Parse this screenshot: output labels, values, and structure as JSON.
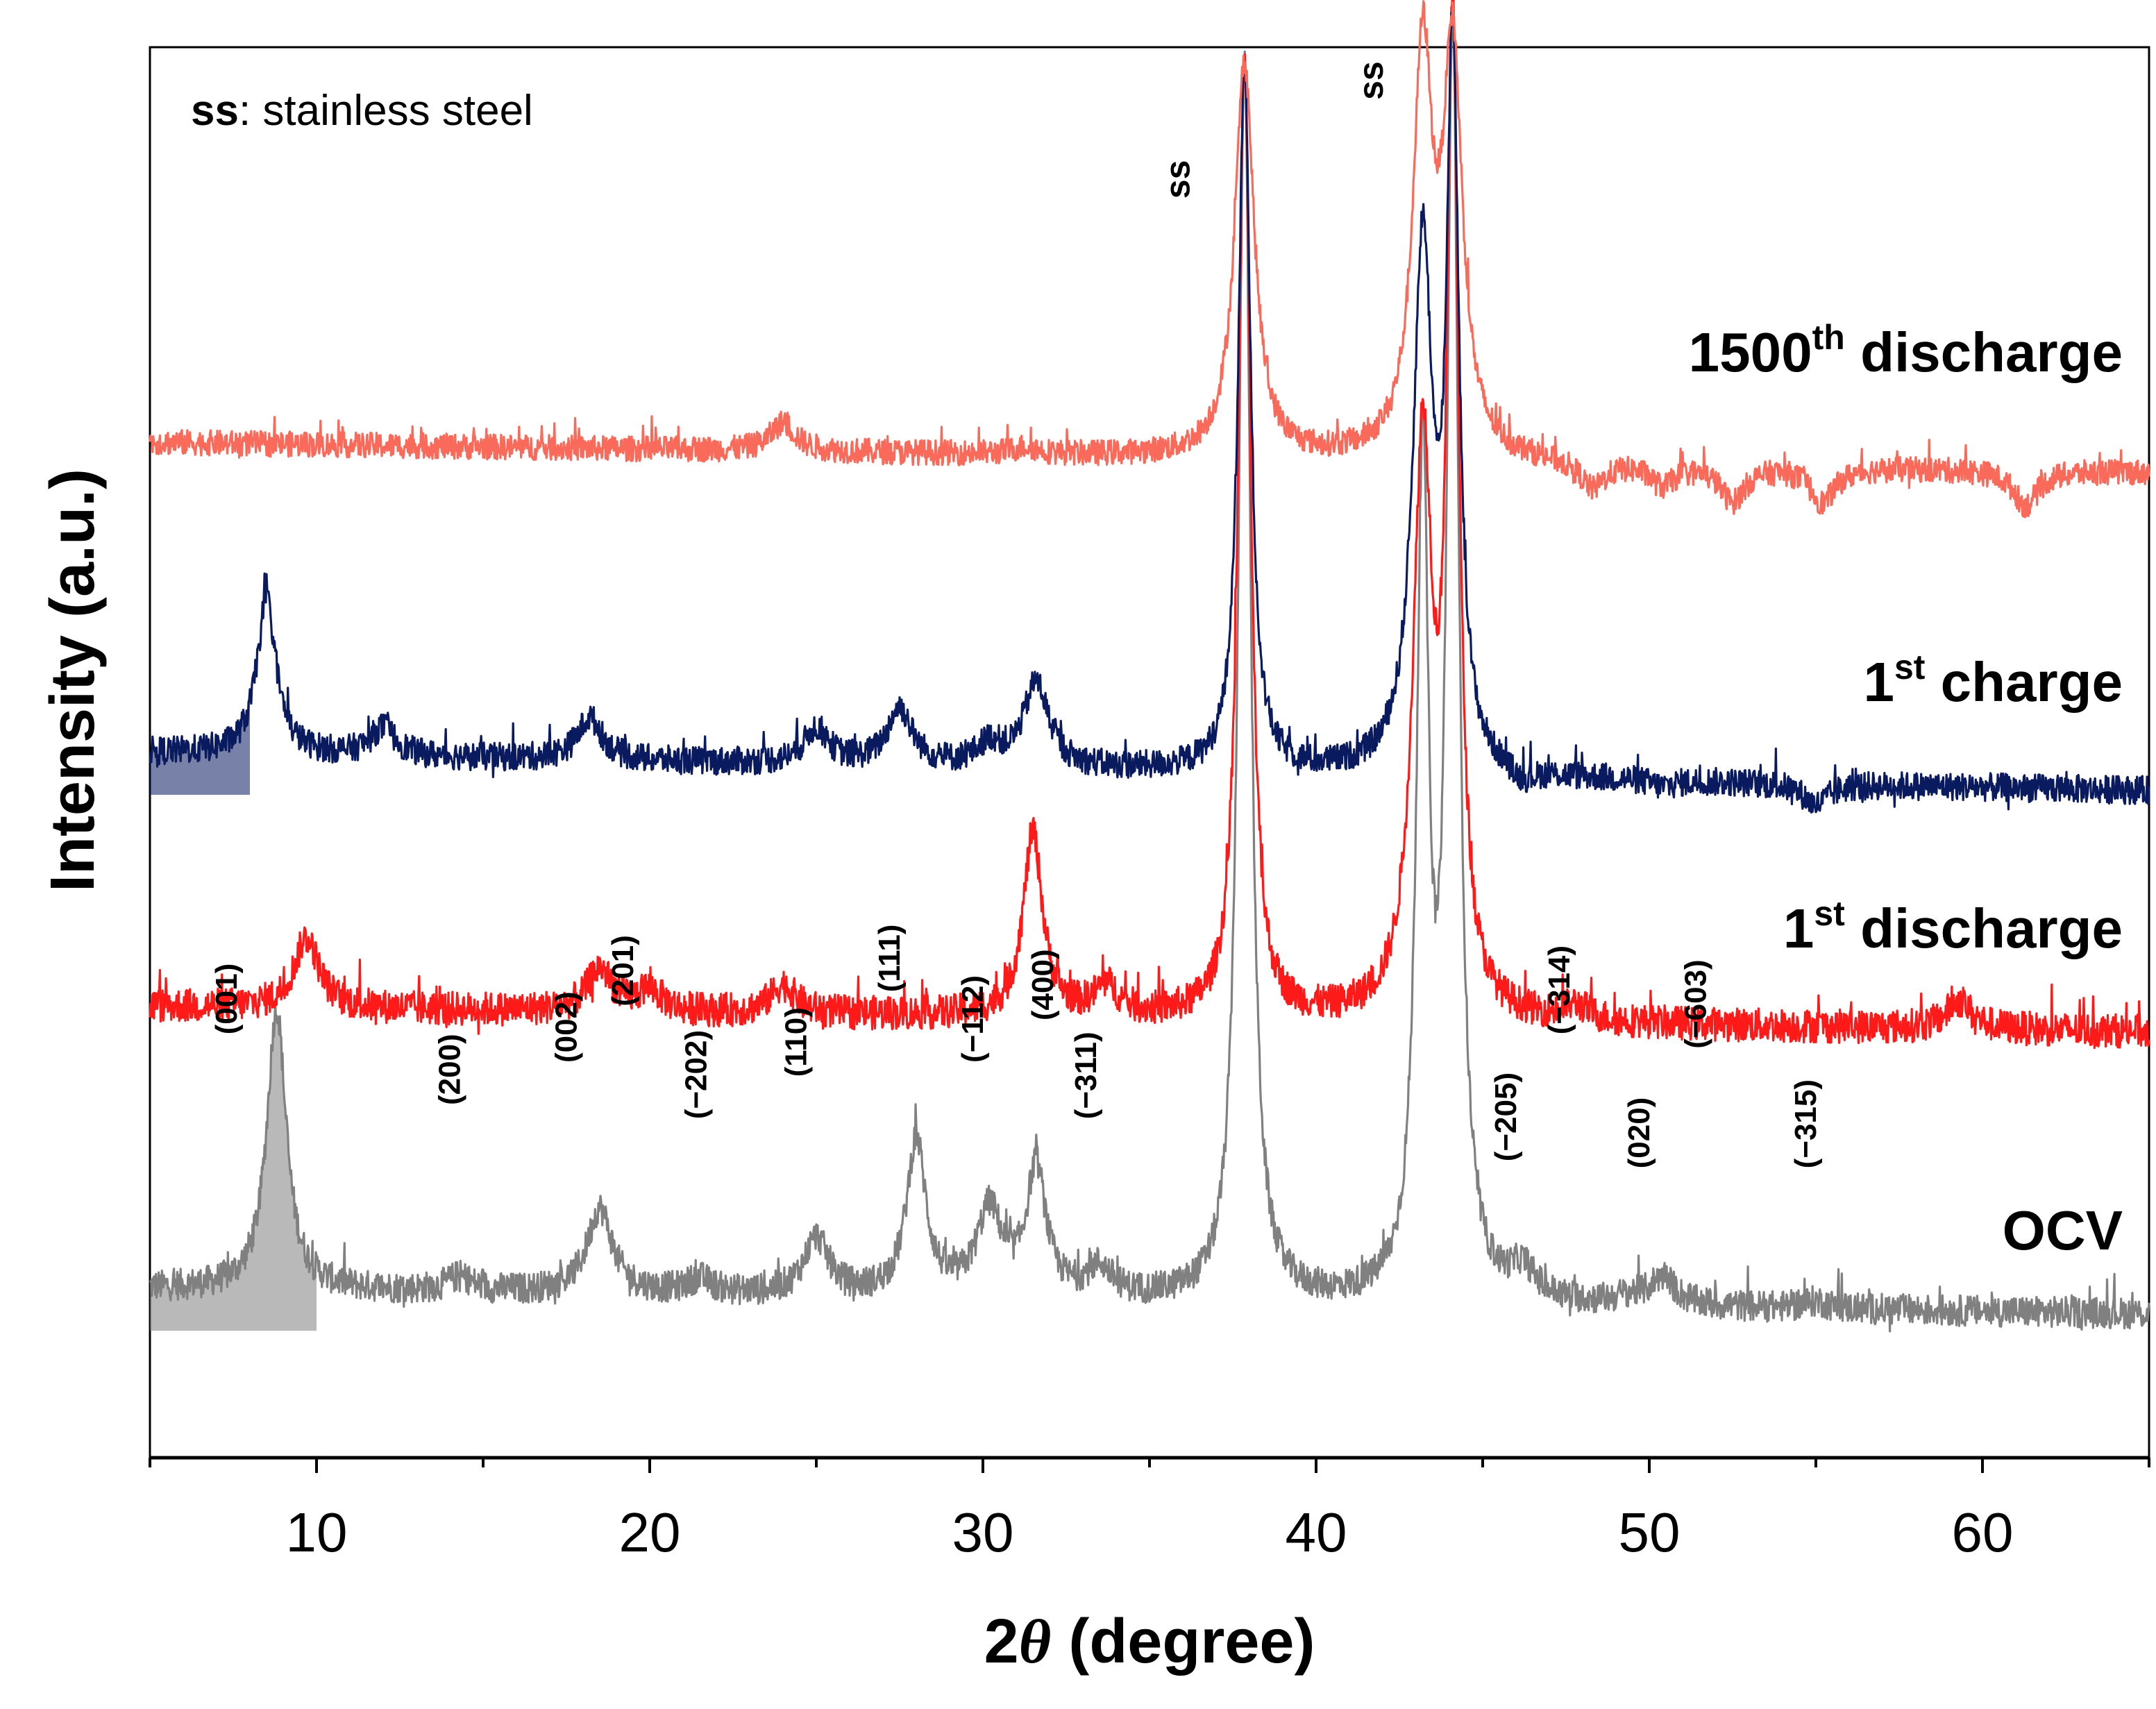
{
  "chart_data": {
    "type": "line",
    "title": "",
    "xlabel_prefix": "2",
    "xlabel_theta": "θ",
    "xlabel_suffix": " (degree)",
    "ylabel": "Intensity (a.u.)",
    "xlim": [
      5,
      65
    ],
    "ylim": [
      0,
      100
    ],
    "xticks": [
      10,
      20,
      30,
      40,
      50,
      60
    ],
    "grid": false,
    "legend": "none",
    "annotation": {
      "bold": "ss",
      "text": ": stainless steel"
    },
    "ss_markers": [
      {
        "label": "ss",
        "x": 36.2,
        "y": 92
      },
      {
        "label": "ss",
        "x": 42.0,
        "y": 99
      }
    ],
    "series": [
      {
        "name": "OCV",
        "label_main": "OCV",
        "label_sup": "",
        "label_tail": "",
        "color": "#808080",
        "baseline": 12,
        "noise": 1.1,
        "slope": -0.03,
        "fill_below_x": 10,
        "x": [
          5,
          8.8,
          14.3,
          18.5,
          21.5,
          25.0,
          28.0,
          30.2,
          31.6,
          33.5,
          37.85,
          43.2,
          44.1,
          46.2,
          49.4,
          50.4,
          55.0,
          62.0
        ],
        "y": [
          12,
          32,
          13,
          18,
          13,
          16,
          23,
          18,
          21,
          14,
          100,
          70,
          100,
          14,
          12.5,
          14,
          12.5,
          12
        ],
        "peak_labels": [
          {
            "label": "(001)",
            "x": 7.6,
            "y": 30
          },
          {
            "label": "(200)",
            "x": 14.3,
            "y": 25
          },
          {
            "label": "(002)",
            "x": 17.8,
            "y": 28
          },
          {
            "label": "(201)",
            "x": 19.5,
            "y": 32
          },
          {
            "label": "(−202)",
            "x": 21.7,
            "y": 24
          },
          {
            "label": "(110)",
            "x": 24.7,
            "y": 27
          },
          {
            "label": "(111)",
            "x": 27.5,
            "y": 33
          },
          {
            "label": "(−112)",
            "x": 30.0,
            "y": 28
          },
          {
            "label": "(400)",
            "x": 32.1,
            "y": 31
          },
          {
            "label": "(−311)",
            "x": 33.4,
            "y": 24
          },
          {
            "label": "(−205)",
            "x": 46.0,
            "y": 21
          },
          {
            "label": "(−314)",
            "x": 47.6,
            "y": 30
          },
          {
            "label": "(020)",
            "x": 50.0,
            "y": 20.5
          },
          {
            "label": "(−603)",
            "x": 51.7,
            "y": 29
          },
          {
            "label": "(−315)",
            "x": 55.0,
            "y": 20.5
          }
        ]
      },
      {
        "name": "1st discharge",
        "label_main": "1",
        "label_sup": "st",
        "label_tail": " discharge",
        "color": "#ff1a1a",
        "baseline": 32,
        "noise": 1.2,
        "slope": -0.03,
        "x": [
          5,
          9.7,
          18.5,
          20.0,
          24.0,
          31.5,
          33.7,
          37.85,
          43.2,
          44.1,
          47.8,
          50.4,
          59.3
        ],
        "y": [
          32,
          37,
          35,
          33.5,
          34,
          45,
          34,
          100,
          72,
          100,
          33,
          32,
          34
        ],
        "peak_labels": []
      },
      {
        "name": "1st charge",
        "label_main": "1",
        "label_sup": "st",
        "label_tail": " charge",
        "color": "#0a1a5e",
        "baseline": 50,
        "noise": 1.0,
        "slope": -0.045,
        "fill_below_x": 8,
        "x": [
          5,
          8.5,
          12.0,
          18.2,
          25.0,
          27.5,
          30.2,
          31.6,
          37.85,
          43.2,
          44.1,
          46.2,
          50.4,
          55.0
        ],
        "y": [
          53,
          61,
          52,
          53,
          52.5,
          54,
          51.5,
          56,
          100,
          87,
          100,
          49,
          49.5,
          48.5
        ],
        "peak_labels": []
      },
      {
        "name": "1500th discharge",
        "label_main": "1500",
        "label_sup": "th",
        "label_tail": " discharge",
        "color": "#fa6a5a",
        "baseline": 72,
        "noise": 0.9,
        "slope": -0.035,
        "x": [
          5,
          24.0,
          31.3,
          37.85,
          43.2,
          44.1,
          48.3,
          50.4,
          52.5,
          55.2,
          61.3
        ],
        "y": [
          72.5,
          74,
          72.5,
          100,
          100,
          100,
          70,
          70.5,
          69.5,
          69.5,
          69.5
        ],
        "peak_labels": []
      }
    ]
  }
}
